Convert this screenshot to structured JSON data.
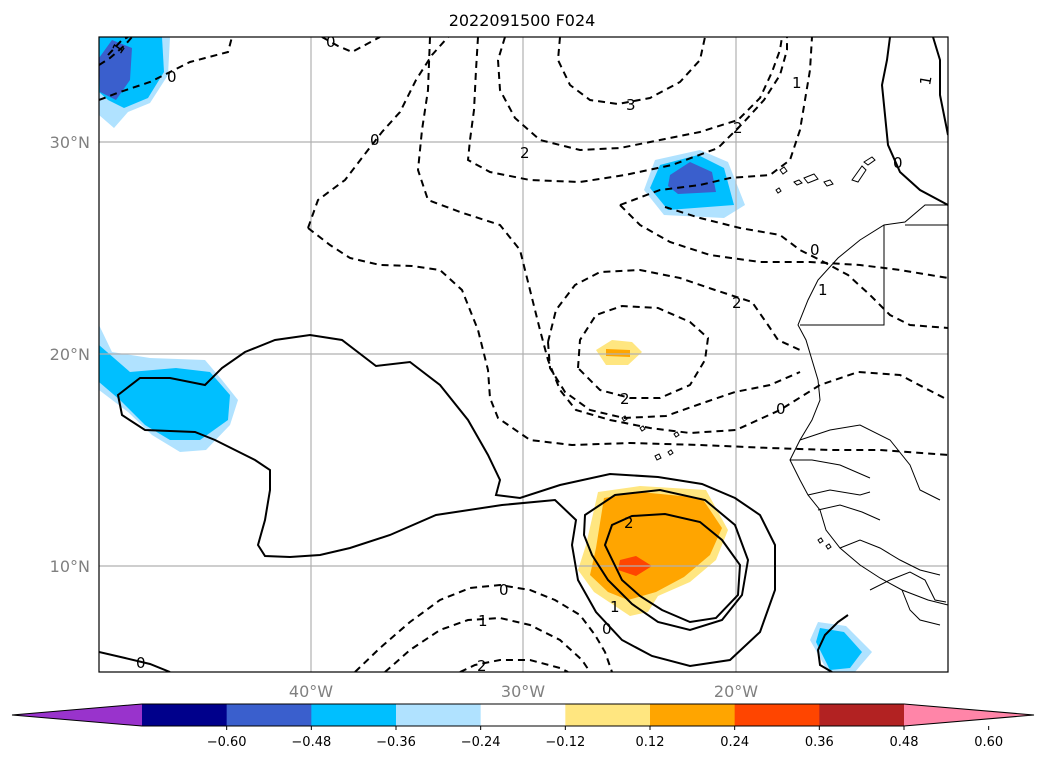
{
  "title": "2022091500 F024",
  "lat_labels": [
    "30°N",
    "20°N",
    "10°N"
  ],
  "lon_labels": [
    "40°W",
    "30°W",
    "20°W"
  ],
  "colorbar": {
    "ticks": [
      "−0.60",
      "−0.48",
      "−0.36",
      "−0.24",
      "−0.12",
      "0.12",
      "0.24",
      "0.36",
      "0.48",
      "0.60"
    ],
    "colors": [
      "#9933cc",
      "#00008b",
      "#3a5fcd",
      "#00bfff",
      "#b0e2ff",
      "#ffffff",
      "#ffe680",
      "#ffa500",
      "#ff4500",
      "#b22222",
      "#ff85a8"
    ],
    "extend": "both"
  },
  "contour_labels": [
    "1",
    "0",
    "0",
    "0",
    "1",
    "3",
    "2",
    "2",
    "0",
    "1",
    "2",
    "2",
    "1",
    "0",
    "0",
    "2",
    "1",
    "0",
    "1",
    "2",
    "0"
  ],
  "map": {
    "region": "Eastern tropical North Atlantic and West Africa",
    "lon_range": [
      -50,
      -10
    ],
    "lat_range": [
      5,
      35
    ],
    "gridlines": true,
    "colors": {
      "land_coast": "#000000",
      "grid": "#b0b0b0",
      "light_blue": "#b0e2ff",
      "blue": "#00bfff",
      "dark_blue": "#3a5fcd",
      "yellow": "#ffe680",
      "orange": "#ffa500",
      "red": "#ff4500"
    }
  }
}
